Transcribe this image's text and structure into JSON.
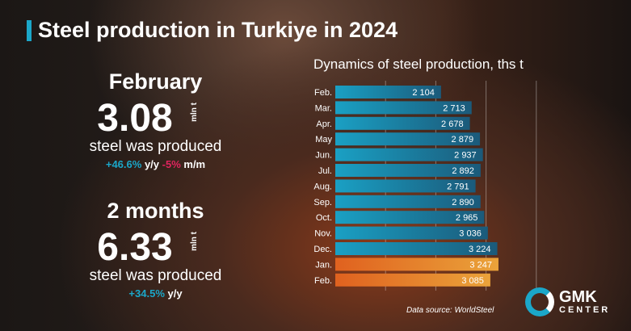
{
  "title": "Steel production in Turkiye in 2024",
  "month": {
    "label": "February",
    "value": "3.08",
    "unit": "mln t",
    "text": "steel was produced",
    "yoy": "+46.6%",
    "yoy_label": "y/y",
    "mom": "-5%",
    "mom_label": "m/m"
  },
  "period": {
    "label": "2 months",
    "value": "6.33",
    "unit": "mln t",
    "text": "steel was produced",
    "yoy": "+34.5%",
    "yoy_label": "y/y"
  },
  "source": "Data source: WorldSteel",
  "logo": {
    "line1": "GMK",
    "line2": "CENTER"
  },
  "colors": {
    "accent": "#1ba7c9",
    "negative": "#e0245e",
    "bar_2023": "#1a8fb0",
    "bar_2024": "#e8892a"
  },
  "chart_data": {
    "type": "bar",
    "orientation": "horizontal",
    "title": "Dynamics of steel production, ths t",
    "categories": [
      "Feb.",
      "Mar.",
      "Apr.",
      "May",
      "Jun.",
      "Jul.",
      "Aug.",
      "Sep.",
      "Oct.",
      "Nov.",
      "Dec.",
      "Jan.",
      "Feb."
    ],
    "values": [
      2104,
      2713,
      2678,
      2879,
      2937,
      2892,
      2791,
      2890,
      2965,
      3036,
      3224,
      3247,
      3085
    ],
    "labels": [
      "2 104",
      "2 713",
      "2 678",
      "2 879",
      "2 937",
      "2 892",
      "2 791",
      "2 890",
      "2 965",
      "3 036",
      "3 224",
      "3 247",
      "3 085"
    ],
    "highlighted": [
      11,
      12
    ],
    "xlim": [
      0,
      4000
    ],
    "grid": true
  }
}
